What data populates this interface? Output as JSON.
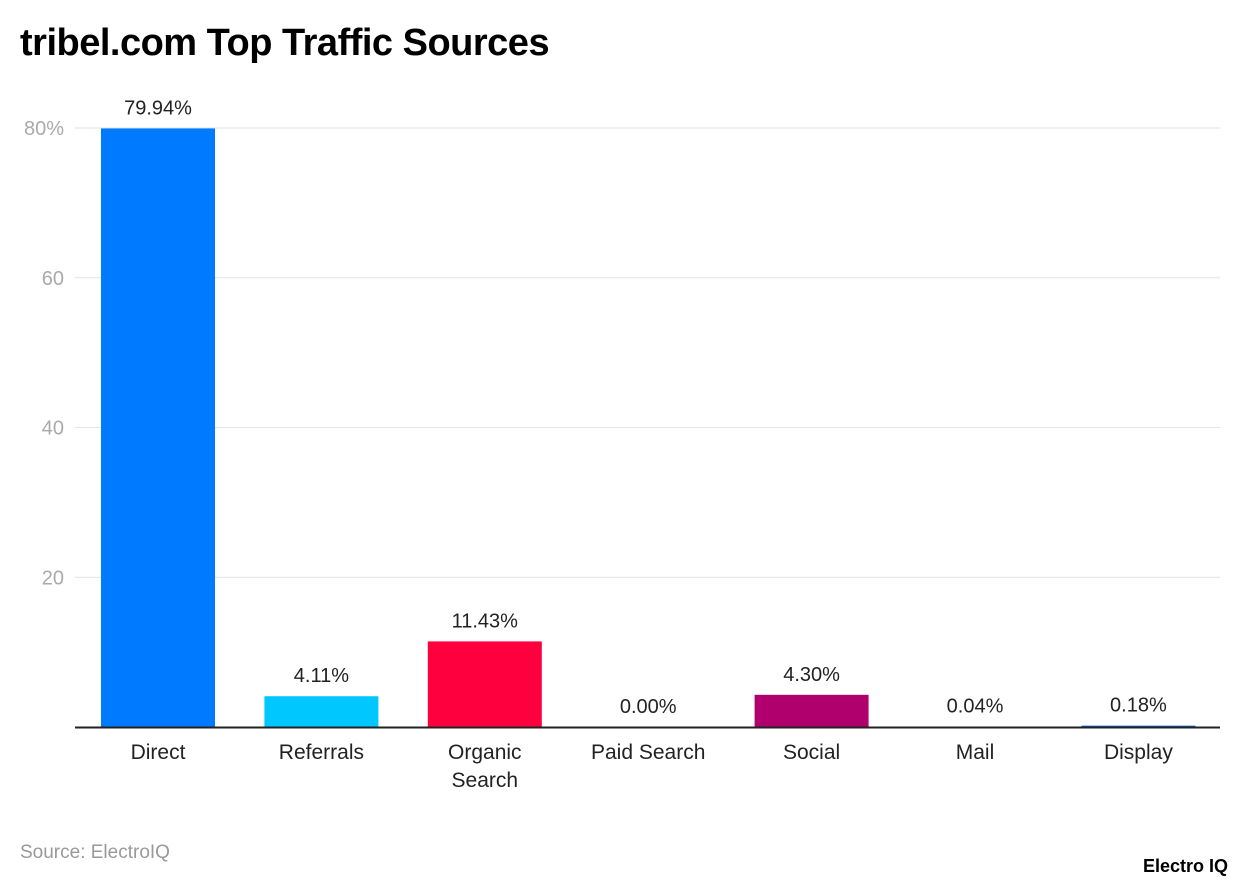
{
  "chart_data": {
    "type": "bar",
    "title": "tribel.com Top Traffic Sources",
    "categories": [
      "Direct",
      "Referrals",
      "Organic Search",
      "Paid Search",
      "Social",
      "Mail",
      "Display"
    ],
    "category_lines": [
      [
        "Direct"
      ],
      [
        "Referrals"
      ],
      [
        "Organic",
        "Search"
      ],
      [
        "Paid Search"
      ],
      [
        "Social"
      ],
      [
        "Mail"
      ],
      [
        "Display"
      ]
    ],
    "values": [
      79.94,
      4.11,
      11.43,
      0.0,
      4.3,
      0.04,
      0.18
    ],
    "data_labels": [
      "79.94%",
      "4.11%",
      "11.43%",
      "0.00%",
      "4.30%",
      "0.04%",
      "0.18%"
    ],
    "colors": [
      "#007bff",
      "#00c8ff",
      "#ff003f",
      "#ff7f00",
      "#b0006e",
      "#7a3fc0",
      "#0a5fd6"
    ],
    "yticks": [
      20,
      40,
      60,
      80
    ],
    "ytick_labels": [
      "20",
      "40",
      "60",
      "80%"
    ],
    "ylim": [
      0,
      80
    ],
    "xlabel": "",
    "ylabel": "",
    "grid": true,
    "legend": "none"
  },
  "footer": {
    "source": "Source: ElectroIQ",
    "logo": "Electro IQ"
  }
}
